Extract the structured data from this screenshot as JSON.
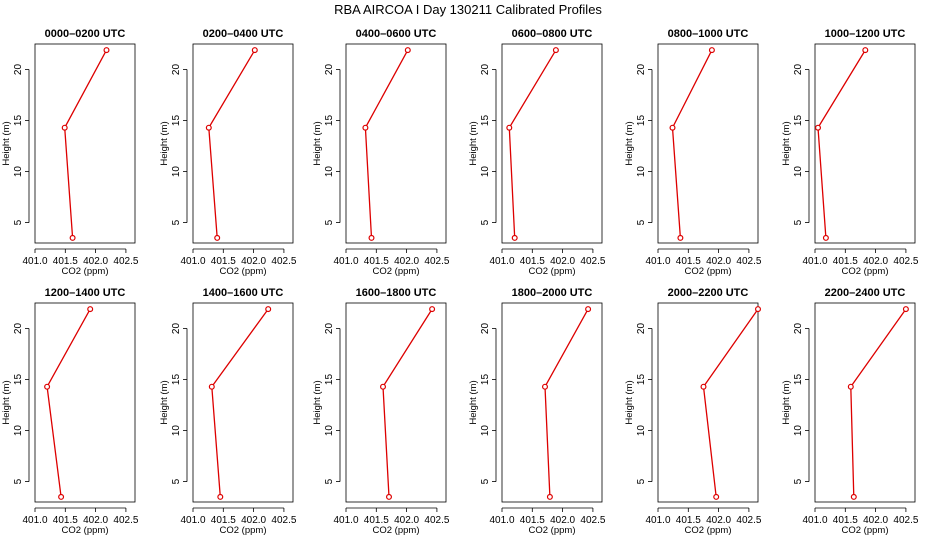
{
  "title": "RBA AIRCOA I  Day 130211  Calibrated Profiles",
  "colors": {
    "series": "#dd0000",
    "axis": "#000000",
    "background": "#ffffff"
  },
  "chart_data": [
    {
      "type": "line",
      "title": "0000–0200 UTC",
      "xlabel": "CO2 (ppm)",
      "ylabel": "Height (m)",
      "x_ticks": [
        "401.0",
        "401.5",
        "402.0",
        "402.5"
      ],
      "y_ticks": [
        "5",
        "10",
        "15",
        "20"
      ],
      "xlim": [
        401.0,
        402.65
      ],
      "ylim": [
        3.0,
        22.5
      ],
      "heights": [
        3.5,
        14.3,
        21.9
      ],
      "values": [
        401.62,
        401.49,
        402.18
      ]
    },
    {
      "type": "line",
      "title": "0200–0400 UTC",
      "xlabel": "CO2 (ppm)",
      "ylabel": "Height (m)",
      "x_ticks": [
        "401.0",
        "401.5",
        "402.0",
        "402.5"
      ],
      "y_ticks": [
        "5",
        "10",
        "15",
        "20"
      ],
      "xlim": [
        401.0,
        402.65
      ],
      "ylim": [
        3.0,
        22.5
      ],
      "heights": [
        3.5,
        14.3,
        21.9
      ],
      "values": [
        401.4,
        401.26,
        402.02
      ]
    },
    {
      "type": "line",
      "title": "0400–0600 UTC",
      "xlabel": "CO2 (ppm)",
      "ylabel": "Height (m)",
      "x_ticks": [
        "401.0",
        "401.5",
        "402.0",
        "402.5"
      ],
      "y_ticks": [
        "5",
        "10",
        "15",
        "20"
      ],
      "xlim": [
        401.0,
        402.65
      ],
      "ylim": [
        3.0,
        22.5
      ],
      "heights": [
        3.5,
        14.3,
        21.9
      ],
      "values": [
        401.42,
        401.32,
        402.02
      ]
    },
    {
      "type": "line",
      "title": "0600–0800 UTC",
      "xlabel": "CO2 (ppm)",
      "ylabel": "Height (m)",
      "x_ticks": [
        "401.0",
        "401.5",
        "402.0",
        "402.5"
      ],
      "y_ticks": [
        "5",
        "10",
        "15",
        "20"
      ],
      "xlim": [
        401.0,
        402.65
      ],
      "ylim": [
        3.0,
        22.5
      ],
      "heights": [
        3.5,
        14.3,
        21.9
      ],
      "values": [
        401.21,
        401.12,
        401.89
      ]
    },
    {
      "type": "line",
      "title": "0800–1000 UTC",
      "xlabel": "CO2 (ppm)",
      "ylabel": "Height (m)",
      "x_ticks": [
        "401.0",
        "401.5",
        "402.0",
        "402.5"
      ],
      "y_ticks": [
        "5",
        "10",
        "15",
        "20"
      ],
      "xlim": [
        401.0,
        402.65
      ],
      "ylim": [
        3.0,
        22.5
      ],
      "heights": [
        3.5,
        14.3,
        21.9
      ],
      "values": [
        401.37,
        401.24,
        401.89
      ]
    },
    {
      "type": "line",
      "title": "1000–1200 UTC",
      "xlabel": "CO2 (ppm)",
      "ylabel": "Height (m)",
      "x_ticks": [
        "401.0",
        "401.5",
        "402.0",
        "402.5"
      ],
      "y_ticks": [
        "5",
        "10",
        "15",
        "20"
      ],
      "xlim": [
        401.0,
        402.65
      ],
      "ylim": [
        3.0,
        22.5
      ],
      "heights": [
        3.5,
        14.3,
        21.9
      ],
      "values": [
        401.18,
        401.05,
        401.83
      ]
    },
    {
      "type": "line",
      "title": "1200–1400 UTC",
      "xlabel": "CO2 (ppm)",
      "ylabel": "Height (m)",
      "x_ticks": [
        "401.0",
        "401.5",
        "402.0",
        "402.5"
      ],
      "y_ticks": [
        "5",
        "10",
        "15",
        "20"
      ],
      "xlim": [
        401.0,
        402.65
      ],
      "ylim": [
        3.0,
        22.5
      ],
      "heights": [
        3.5,
        14.3,
        21.9
      ],
      "values": [
        401.43,
        401.2,
        401.91
      ]
    },
    {
      "type": "line",
      "title": "1400–1600 UTC",
      "xlabel": "CO2 (ppm)",
      "ylabel": "Height (m)",
      "x_ticks": [
        "401.0",
        "401.5",
        "402.0",
        "402.5"
      ],
      "y_ticks": [
        "5",
        "10",
        "15",
        "20"
      ],
      "xlim": [
        401.0,
        402.65
      ],
      "ylim": [
        3.0,
        22.5
      ],
      "heights": [
        3.5,
        14.3,
        21.9
      ],
      "values": [
        401.45,
        401.31,
        402.24
      ]
    },
    {
      "type": "line",
      "title": "1600–1800 UTC",
      "xlabel": "CO2 (ppm)",
      "ylabel": "Height (m)",
      "x_ticks": [
        "401.0",
        "401.5",
        "402.0",
        "402.5"
      ],
      "y_ticks": [
        "5",
        "10",
        "15",
        "20"
      ],
      "xlim": [
        401.0,
        402.65
      ],
      "ylim": [
        3.0,
        22.5
      ],
      "heights": [
        3.5,
        14.3,
        21.9
      ],
      "values": [
        401.71,
        401.61,
        402.42
      ]
    },
    {
      "type": "line",
      "title": "1800–2000 UTC",
      "xlabel": "CO2 (ppm)",
      "ylabel": "Height (m)",
      "x_ticks": [
        "401.0",
        "401.5",
        "402.0",
        "402.5"
      ],
      "y_ticks": [
        "5",
        "10",
        "15",
        "20"
      ],
      "xlim": [
        401.0,
        402.65
      ],
      "ylim": [
        3.0,
        22.5
      ],
      "heights": [
        3.5,
        14.3,
        21.9
      ],
      "values": [
        401.79,
        401.71,
        402.42
      ]
    },
    {
      "type": "line",
      "title": "2000–2200 UTC",
      "xlabel": "CO2 (ppm)",
      "ylabel": "Height (m)",
      "x_ticks": [
        "401.0",
        "401.5",
        "402.0",
        "402.5"
      ],
      "y_ticks": [
        "5",
        "10",
        "15",
        "20"
      ],
      "xlim": [
        401.0,
        402.65
      ],
      "ylim": [
        3.0,
        22.5
      ],
      "heights": [
        3.5,
        14.3,
        21.9
      ],
      "values": [
        401.96,
        401.75,
        402.65
      ]
    },
    {
      "type": "line",
      "title": "2200–2400 UTC",
      "xlabel": "CO2 (ppm)",
      "ylabel": "Height (m)",
      "x_ticks": [
        "401.0",
        "401.5",
        "402.0",
        "402.5"
      ],
      "y_ticks": [
        "5",
        "10",
        "15",
        "20"
      ],
      "xlim": [
        401.0,
        402.65
      ],
      "ylim": [
        3.0,
        22.5
      ],
      "heights": [
        3.5,
        14.3,
        21.9
      ],
      "values": [
        401.64,
        401.59,
        402.5
      ]
    }
  ]
}
